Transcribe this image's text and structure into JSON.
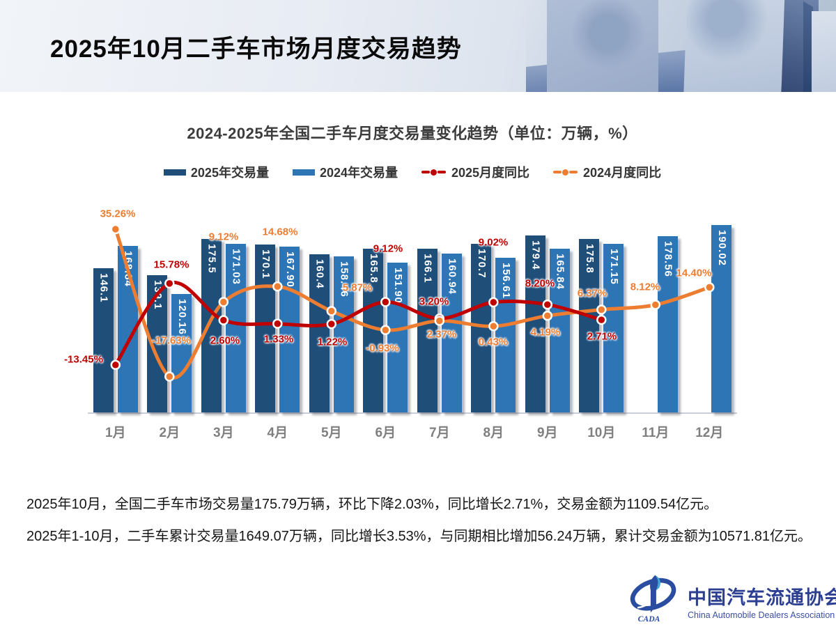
{
  "header": {
    "title": "2025年10月二手车市场月度交易趋势"
  },
  "chart": {
    "title": "2024-2025年全国二手车月度交易量变化趋势（单位：万辆，%）"
  },
  "chart_data": {
    "type": "bar+line combo",
    "title": "2024-2025年全国二手车月度交易量变化趋势（单位：万辆，%）",
    "unit": "万辆，%",
    "legend_position": "top",
    "y_axis_hidden": true,
    "categories": [
      "1月",
      "2月",
      "3月",
      "4月",
      "5月",
      "6月",
      "7月",
      "8月",
      "9月",
      "10月",
      "11月",
      "12月"
    ],
    "series": [
      {
        "name": "2025年交易量",
        "type": "bar",
        "color": "#1F4E79",
        "values": [
          146.1,
          139.1,
          175.5,
          170.1,
          160.4,
          165.8,
          166.1,
          170.7,
          179.4,
          175.8,
          null,
          null
        ],
        "labels": [
          "146.1",
          "139.1",
          "175.5",
          "170.1",
          "160.4",
          "165.8",
          "166.1",
          "170.7",
          "179.4",
          "175.8",
          "",
          ""
        ]
      },
      {
        "name": "2024年交易量",
        "type": "bar",
        "color": "#2E75B6",
        "values": [
          168.84,
          120.16,
          171.03,
          167.9,
          158.46,
          151.9,
          160.94,
          156.61,
          165.84,
          171.15,
          178.56,
          190.02
        ],
        "labels": [
          "168.84",
          "120.16",
          "171.03",
          "167.90",
          "158.46",
          "151.90",
          "160.94",
          "156.61",
          "165.84",
          "171.15",
          "178.56",
          "190.02"
        ]
      },
      {
        "name": "2025月度同比",
        "type": "line",
        "color": "#C00000",
        "values": [
          -13.45,
          15.78,
          2.6,
          1.33,
          1.22,
          9.12,
          3.2,
          9.02,
          8.2,
          2.71,
          null,
          null
        ],
        "labels": [
          "-13.45%",
          "15.78%",
          "2.60%",
          "1.33%",
          "1.22%",
          "9.12%",
          "3.20%",
          "9.02%",
          "8.20%",
          "2.71%",
          "",
          ""
        ]
      },
      {
        "name": "2024月度同比",
        "type": "line",
        "color": "#ED7D31",
        "values": [
          35.26,
          -17.63,
          9.12,
          14.68,
          5.87,
          -0.93,
          2.37,
          0.43,
          4.19,
          6.37,
          8.12,
          14.4
        ],
        "labels": [
          "35.26%",
          "-17.63%",
          "9.12%",
          "14.68%",
          "5.87%",
          "-0.93%",
          "2.37%",
          "0.43%",
          "4.19%",
          "6.37%",
          "8.12%",
          "14.40%"
        ]
      }
    ],
    "layout_hints": {
      "label_positions": {
        "2025月度同比": [
          [
            120,
            516
          ],
          [
            246,
            380
          ],
          [
            323,
            489
          ],
          [
            400,
            487
          ],
          [
            477,
            491
          ],
          [
            557,
            357
          ],
          [
            623,
            433
          ],
          [
            708,
            348
          ],
          [
            775,
            407
          ],
          [
            864,
            483
          ],
          null,
          null
        ],
        "2024月度同比": [
          [
            169,
            307
          ],
          [
            246,
            489
          ],
          [
            321,
            340
          ],
          [
            402,
            333
          ],
          [
            513,
            413
          ],
          [
            549,
            500
          ],
          [
            634,
            480
          ],
          [
            708,
            491
          ],
          [
            783,
            477
          ],
          [
            850,
            421
          ],
          [
            926,
            412
          ],
          [
            996,
            392
          ]
        ]
      }
    }
  },
  "summary": {
    "para1": "2025年10月，全国二手车市场交易量175.79万辆，环比下降2.03%，同比增长2.71%，交易金额为1109.54亿元。",
    "para2": "2025年1-10月，二手车累计交易量1649.07万辆，同比增长3.53%，与同期相比增加56.24万辆，累计交易金额为10571.81亿元。"
  },
  "logo": {
    "acronym": "CADA",
    "name_cn": "中国汽车流通协会",
    "name_en": "China Automobile Dealers Association"
  }
}
